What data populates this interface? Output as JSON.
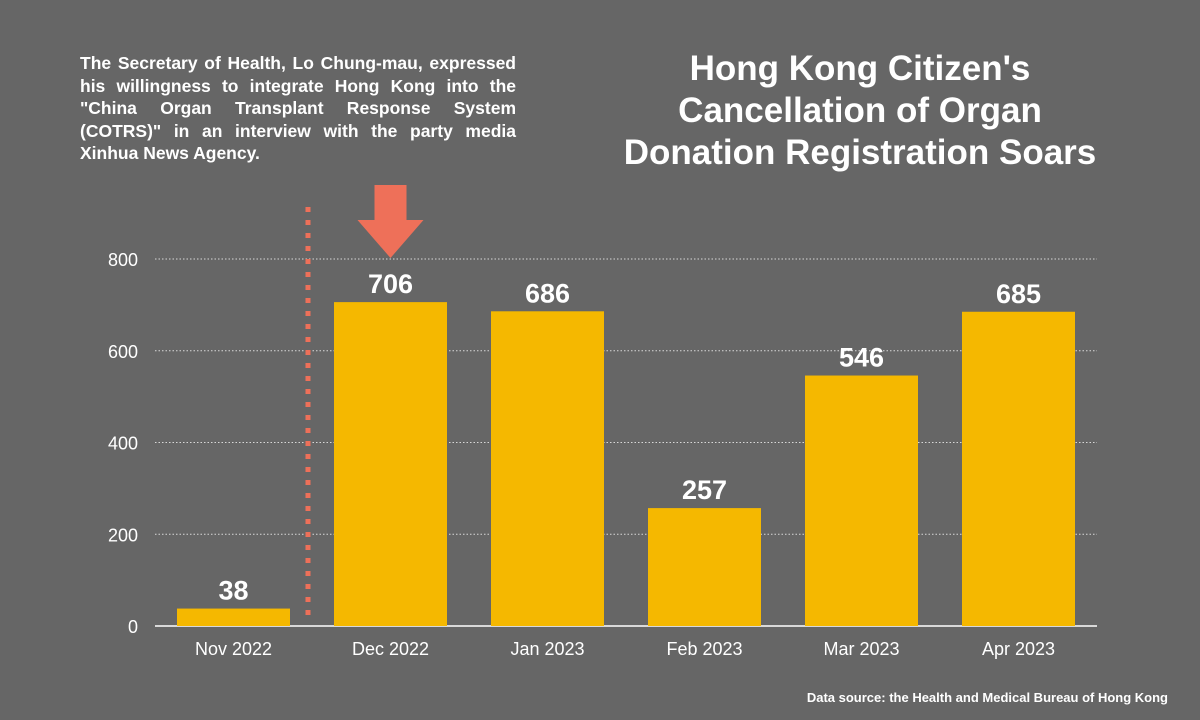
{
  "chart_data": {
    "type": "bar",
    "title": "Hong Kong Citizen's Cancellation of Organ Donation Registration Soars",
    "categories": [
      "Nov 2022",
      "Dec 2022",
      "Jan 2023",
      "Feb 2023",
      "Mar 2023",
      "Apr 2023"
    ],
    "values": [
      38,
      706,
      686,
      257,
      546,
      685
    ],
    "data_labels": [
      "38",
      "706",
      "686",
      "257",
      "546",
      "685"
    ],
    "yticks": [
      "0",
      "200",
      "400",
      "600",
      "800"
    ],
    "ylim": [
      0,
      800
    ],
    "xlabel": "",
    "ylabel": "",
    "grid": "horizontal dotted",
    "annotation": "The Secretary of Health, Lo Chung-mau, expressed his willingness to integrate Hong Kong into the \"China Organ Transplant Response System (COTRS)\" in an interview with the party media Xinhua News Agency.",
    "event_marker_between": [
      "Nov 2022",
      "Dec 2022"
    ],
    "source": "Data source: the Health and Medical Bureau of Hong Kong",
    "colors": {
      "background": "#666666",
      "bar": "#F5B800",
      "marker": "#EE7059",
      "text": "#FFFFFF"
    }
  }
}
